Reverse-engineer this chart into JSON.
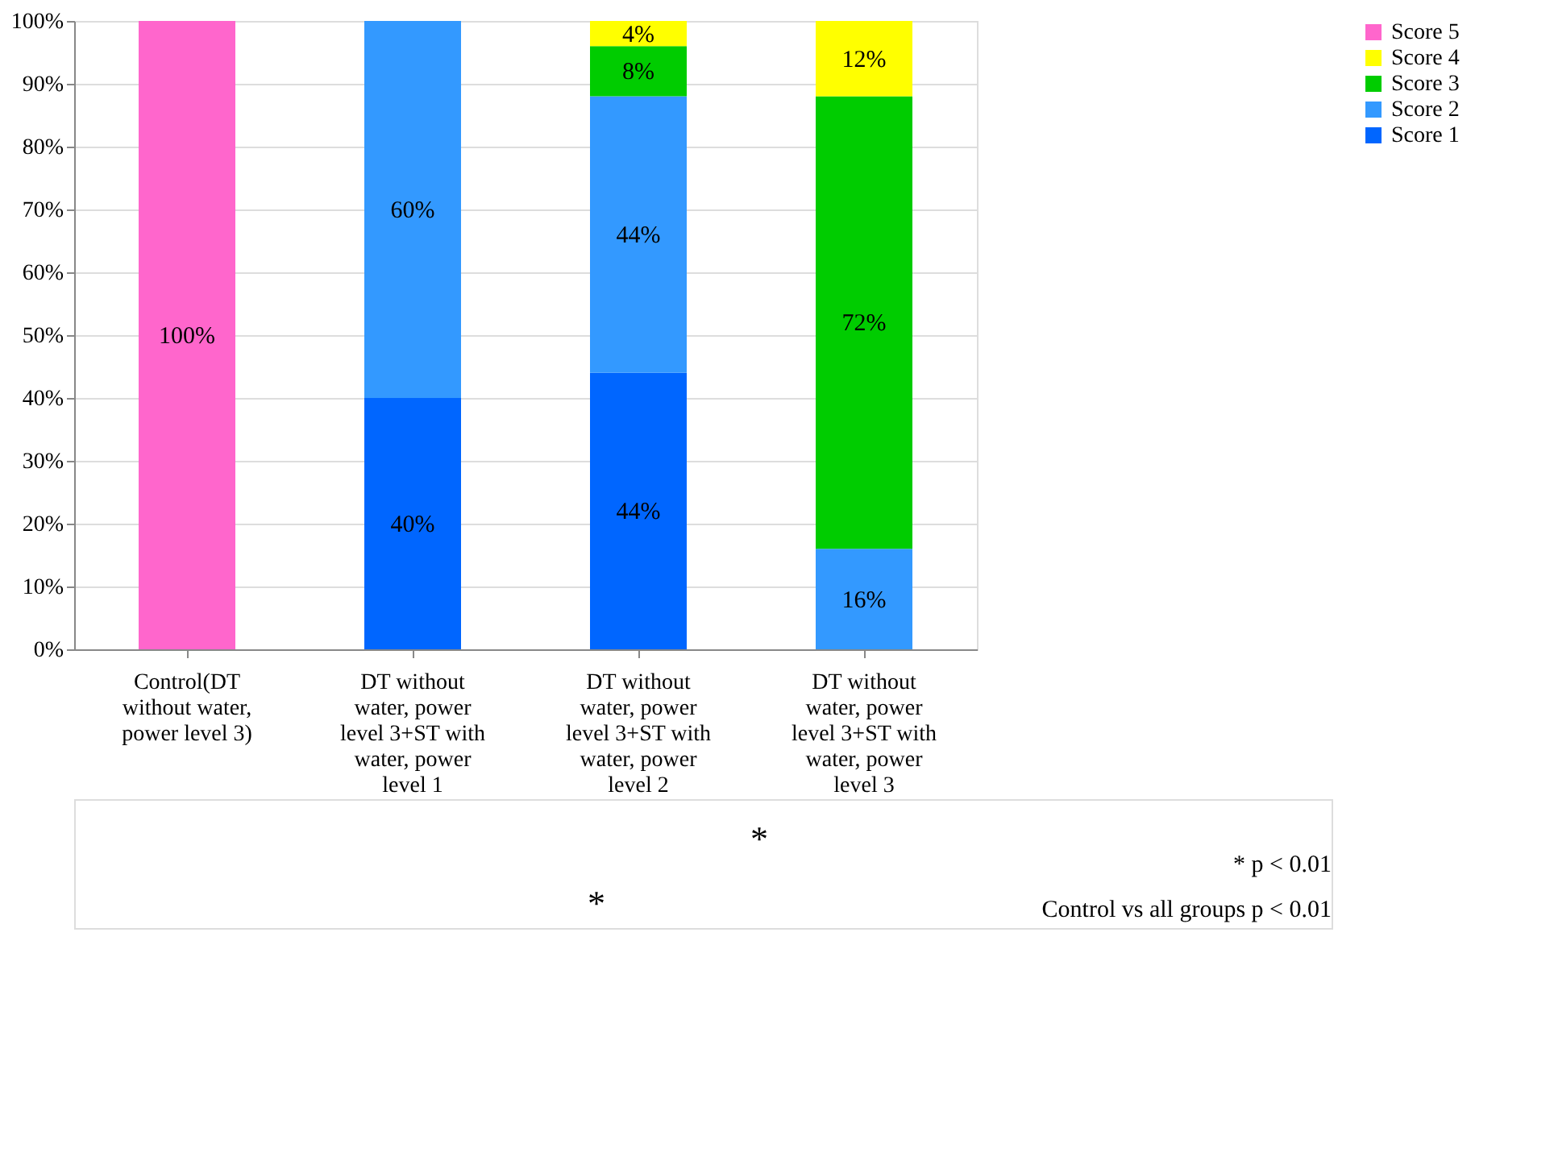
{
  "chart_data": {
    "type": "bar",
    "stacked": true,
    "categories": [
      "Control(DT without water, power level 3)",
      "DT without water, power level 3+ST with water, power level 1",
      "DT without water, power level 3+ST with water, power level 2",
      "DT without water, power level 3+ST with water, power level 3"
    ],
    "series": [
      {
        "name": "Score 1",
        "color": "#0066ff",
        "values": [
          0,
          40,
          44,
          0
        ],
        "value_labels": [
          null,
          "40%",
          "44%",
          null
        ]
      },
      {
        "name": "Score 2",
        "color": "#3399ff",
        "values": [
          0,
          60,
          44,
          16
        ],
        "value_labels": [
          null,
          "60%",
          "44%",
          "16%"
        ]
      },
      {
        "name": "Score 3",
        "color": "#00cc00",
        "values": [
          0,
          0,
          8,
          72
        ],
        "value_labels": [
          null,
          null,
          "8%",
          "72%"
        ]
      },
      {
        "name": "Score 4",
        "color": "#ffff00",
        "values": [
          0,
          0,
          4,
          12
        ],
        "value_labels": [
          null,
          null,
          "4%",
          "12%"
        ]
      },
      {
        "name": "Score 5",
        "color": "#ff66cc",
        "values": [
          100,
          0,
          0,
          0
        ],
        "value_labels": [
          "100%",
          null,
          null,
          null
        ]
      }
    ],
    "ylim": [
      0,
      100
    ],
    "yticks": [
      {
        "value": 0,
        "label": "0%"
      },
      {
        "value": 10,
        "label": "10%"
      },
      {
        "value": 20,
        "label": "20%"
      },
      {
        "value": 30,
        "label": "30%"
      },
      {
        "value": 40,
        "label": "40%"
      },
      {
        "value": 50,
        "label": "50%"
      },
      {
        "value": 60,
        "label": "60%"
      },
      {
        "value": 70,
        "label": "70%"
      },
      {
        "value": 80,
        "label": "80%"
      },
      {
        "value": 90,
        "label": "90%"
      },
      {
        "value": 100,
        "label": "100%"
      }
    ],
    "grid": "y",
    "legend": "right",
    "annotations": [
      "*",
      "*",
      "* p < 0.01",
      "Control vs all groups p < 0.01"
    ]
  }
}
